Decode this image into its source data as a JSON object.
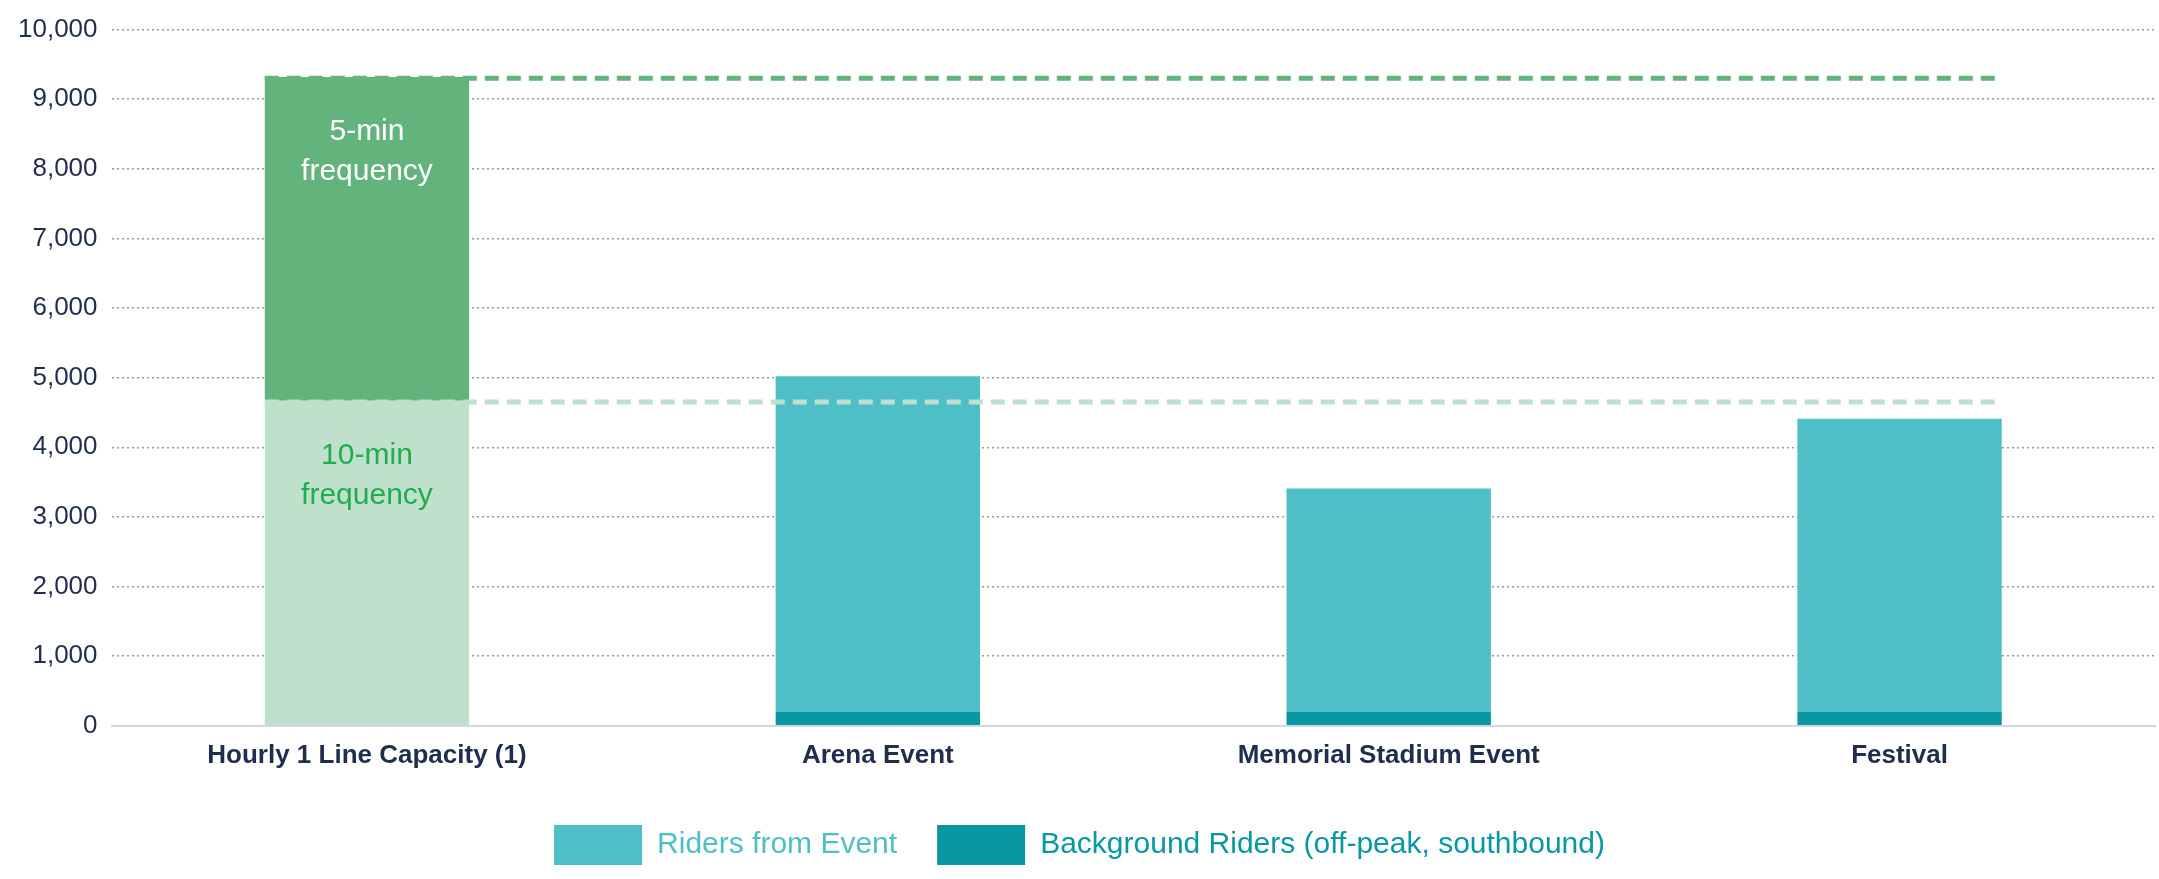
{
  "chart_data": {
    "type": "bar",
    "stacked": true,
    "categories": [
      "Hourly 1 Line Capacity (1)",
      "Arena Event",
      "Memorial Stadium Event",
      "Festival"
    ],
    "series": [
      {
        "name": "10-min frequency",
        "color": "#bfe0cc",
        "values": [
          4670,
          null,
          null,
          null
        ]
      },
      {
        "name": "5-min frequency",
        "color": "#62b37c",
        "values": [
          4650,
          null,
          null,
          null
        ]
      },
      {
        "name": "Background Riders (off-peak, southbound)",
        "color": "#0897a3",
        "values": [
          null,
          200,
          200,
          200
        ]
      },
      {
        "name": "Riders from Event",
        "color": "#4fbfc7",
        "values": [
          null,
          4820,
          3210,
          4210
        ]
      }
    ],
    "ylim": [
      0,
      10000
    ],
    "yticks": [
      0,
      {
        "value": 1000,
        "label": "1,000"
      },
      {
        "value": 2000,
        "label": "2,000"
      },
      {
        "value": 3000,
        "label": "3,000"
      },
      {
        "value": 4000,
        "label": "4,000"
      },
      {
        "value": 5000,
        "label": "5,000"
      },
      {
        "value": 6000,
        "label": "6,000"
      },
      {
        "value": 7000,
        "label": "7,000"
      },
      {
        "value": 8000,
        "label": "8,000"
      },
      {
        "value": 9000,
        "label": "9,000"
      },
      {
        "value": 10000,
        "label": "10,000"
      }
    ],
    "ref_lines": [
      {
        "axis": "y",
        "value": 9300,
        "color": "#62b37c",
        "line_style": "dashed"
      },
      {
        "axis": "y",
        "value": 4650,
        "color": "#bfe0cc",
        "line_style": "dashed"
      }
    ],
    "grid": "y",
    "legend": "bottom"
  }
}
